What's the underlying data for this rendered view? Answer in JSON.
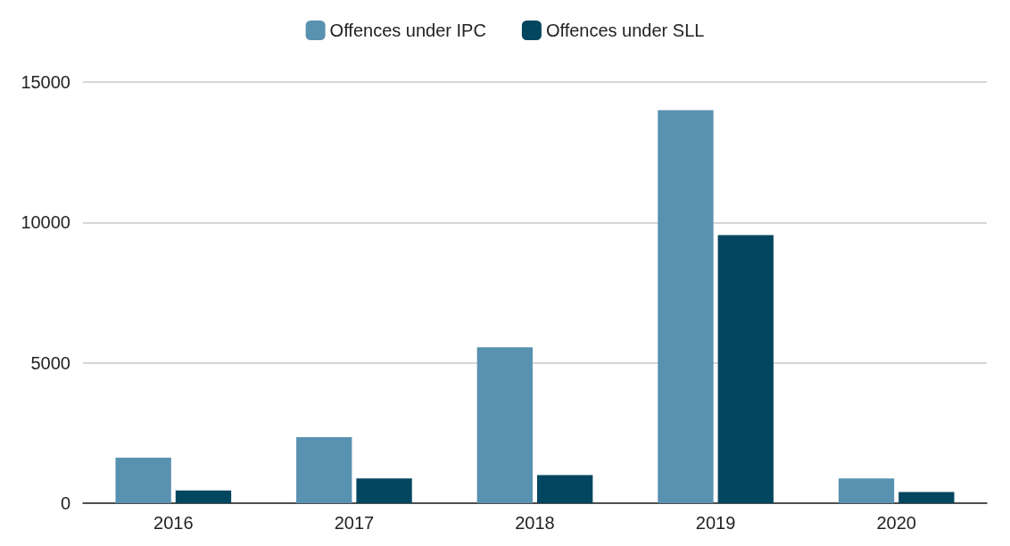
{
  "chart_data": {
    "type": "bar",
    "categories": [
      "2016",
      "2017",
      "2018",
      "2019",
      "2020"
    ],
    "series": [
      {
        "name": "Offences under IPC",
        "color": "#5991b0",
        "values": [
          1620,
          2350,
          5550,
          14000,
          880
        ]
      },
      {
        "name": "Offences under SLL",
        "color": "#03465f",
        "values": [
          450,
          880,
          1000,
          9550,
          400
        ]
      }
    ],
    "ylim": [
      0,
      15000
    ],
    "yticks": [
      0,
      5000,
      10000,
      15000
    ],
    "grid": "y",
    "legend": "top"
  }
}
